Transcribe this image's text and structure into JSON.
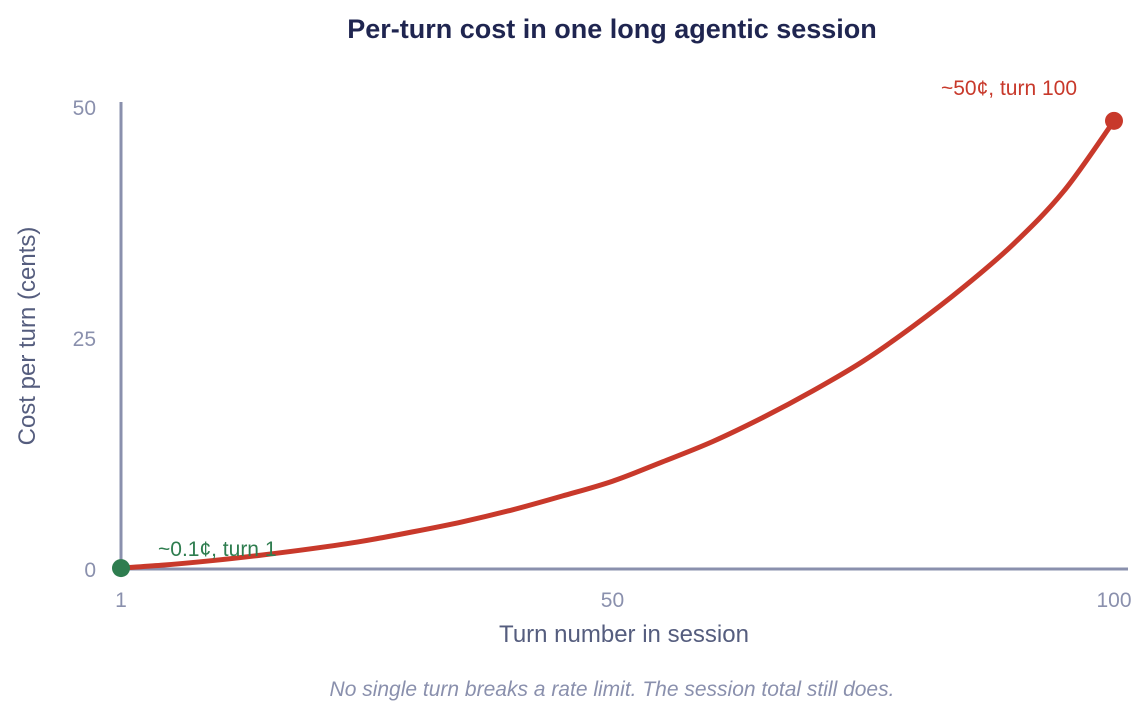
{
  "chart_data": {
    "type": "line",
    "title": "Per-turn cost in one long agentic session",
    "xlabel": "Turn number in session",
    "ylabel": "Cost per turn (cents)",
    "caption": "No single turn breaks a rate limit. The session total still does.",
    "xlim": [
      1,
      100
    ],
    "ylim": [
      0,
      50
    ],
    "xticks": [
      1,
      50,
      100
    ],
    "yticks": [
      0,
      25,
      50
    ],
    "grid": false,
    "series": [
      {
        "color": "#c8392b",
        "x": [
          1,
          5,
          10,
          15,
          20,
          25,
          30,
          35,
          40,
          45,
          50,
          55,
          60,
          65,
          70,
          75,
          80,
          85,
          90,
          95,
          100
        ],
        "y": [
          0.1,
          0.4,
          0.9,
          1.5,
          2.2,
          3.0,
          4.0,
          5.1,
          6.4,
          7.9,
          9.5,
          11.6,
          13.8,
          16.4,
          19.3,
          22.5,
          26.3,
          30.5,
          35.2,
          40.9,
          48.5
        ]
      }
    ],
    "annotations": [
      {
        "text": "~0.1¢, turn 1",
        "x": 1,
        "y": 0.1,
        "color": "#2e7d4f"
      },
      {
        "text": "~50¢, turn 100",
        "x": 100,
        "y": 48.5,
        "color": "#c8392b"
      }
    ],
    "axis_color": "#8a90ad"
  }
}
